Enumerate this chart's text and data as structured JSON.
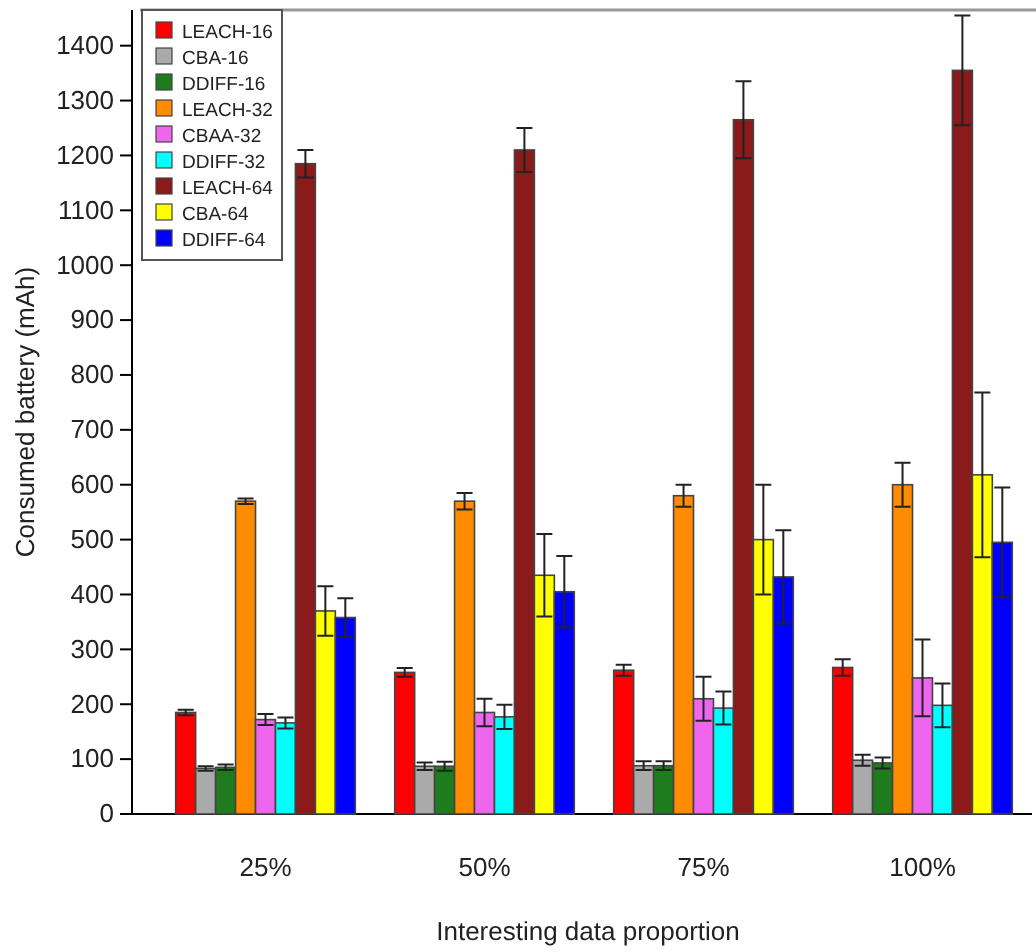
{
  "chart_data": {
    "type": "bar",
    "xlabel": "Interesting data proportion",
    "ylabel": "Consumed battery (mAh)",
    "categories": [
      "25%",
      "50%",
      "75%",
      "100%"
    ],
    "ylim": [
      0,
      1465
    ],
    "yticks": [
      0,
      100,
      200,
      300,
      400,
      500,
      600,
      700,
      800,
      900,
      1000,
      1100,
      1200,
      1300,
      1400
    ],
    "legend": "top left",
    "grid": false,
    "series": [
      {
        "name": "LEACH-16",
        "color": "#ff0000",
        "values": [
          185,
          258,
          262,
          267
        ],
        "errors": [
          5,
          8,
          10,
          15
        ]
      },
      {
        "name": "CBA-16",
        "color": "#aaaaaa",
        "values": [
          83,
          87,
          88,
          98
        ],
        "errors": [
          4,
          7,
          8,
          10
        ]
      },
      {
        "name": "DDIFF-16",
        "color": "#1e7b1e",
        "values": [
          85,
          87,
          88,
          93
        ],
        "errors": [
          5,
          8,
          8,
          10
        ]
      },
      {
        "name": "LEACH-32",
        "color": "#ff8c00",
        "values": [
          570,
          570,
          580,
          600
        ],
        "errors": [
          5,
          15,
          20,
          40
        ]
      },
      {
        "name": "CBAA-32",
        "color": "#ee66ee",
        "values": [
          172,
          185,
          210,
          248
        ],
        "errors": [
          10,
          25,
          40,
          70
        ]
      },
      {
        "name": "DDIFF-32",
        "color": "#00ffff",
        "values": [
          166,
          177,
          193,
          198
        ],
        "errors": [
          10,
          22,
          30,
          40
        ]
      },
      {
        "name": "LEACH-64",
        "color": "#8b1a1a",
        "values": [
          1185,
          1210,
          1265,
          1355
        ],
        "errors": [
          25,
          40,
          70,
          100
        ]
      },
      {
        "name": "CBA-64",
        "color": "#ffff00",
        "values": [
          370,
          435,
          500,
          618
        ],
        "errors": [
          45,
          75,
          100,
          150
        ]
      },
      {
        "name": "DDIFF-64",
        "color": "#0000ff",
        "values": [
          358,
          405,
          432,
          495
        ],
        "errors": [
          35,
          65,
          85,
          100
        ]
      }
    ]
  }
}
